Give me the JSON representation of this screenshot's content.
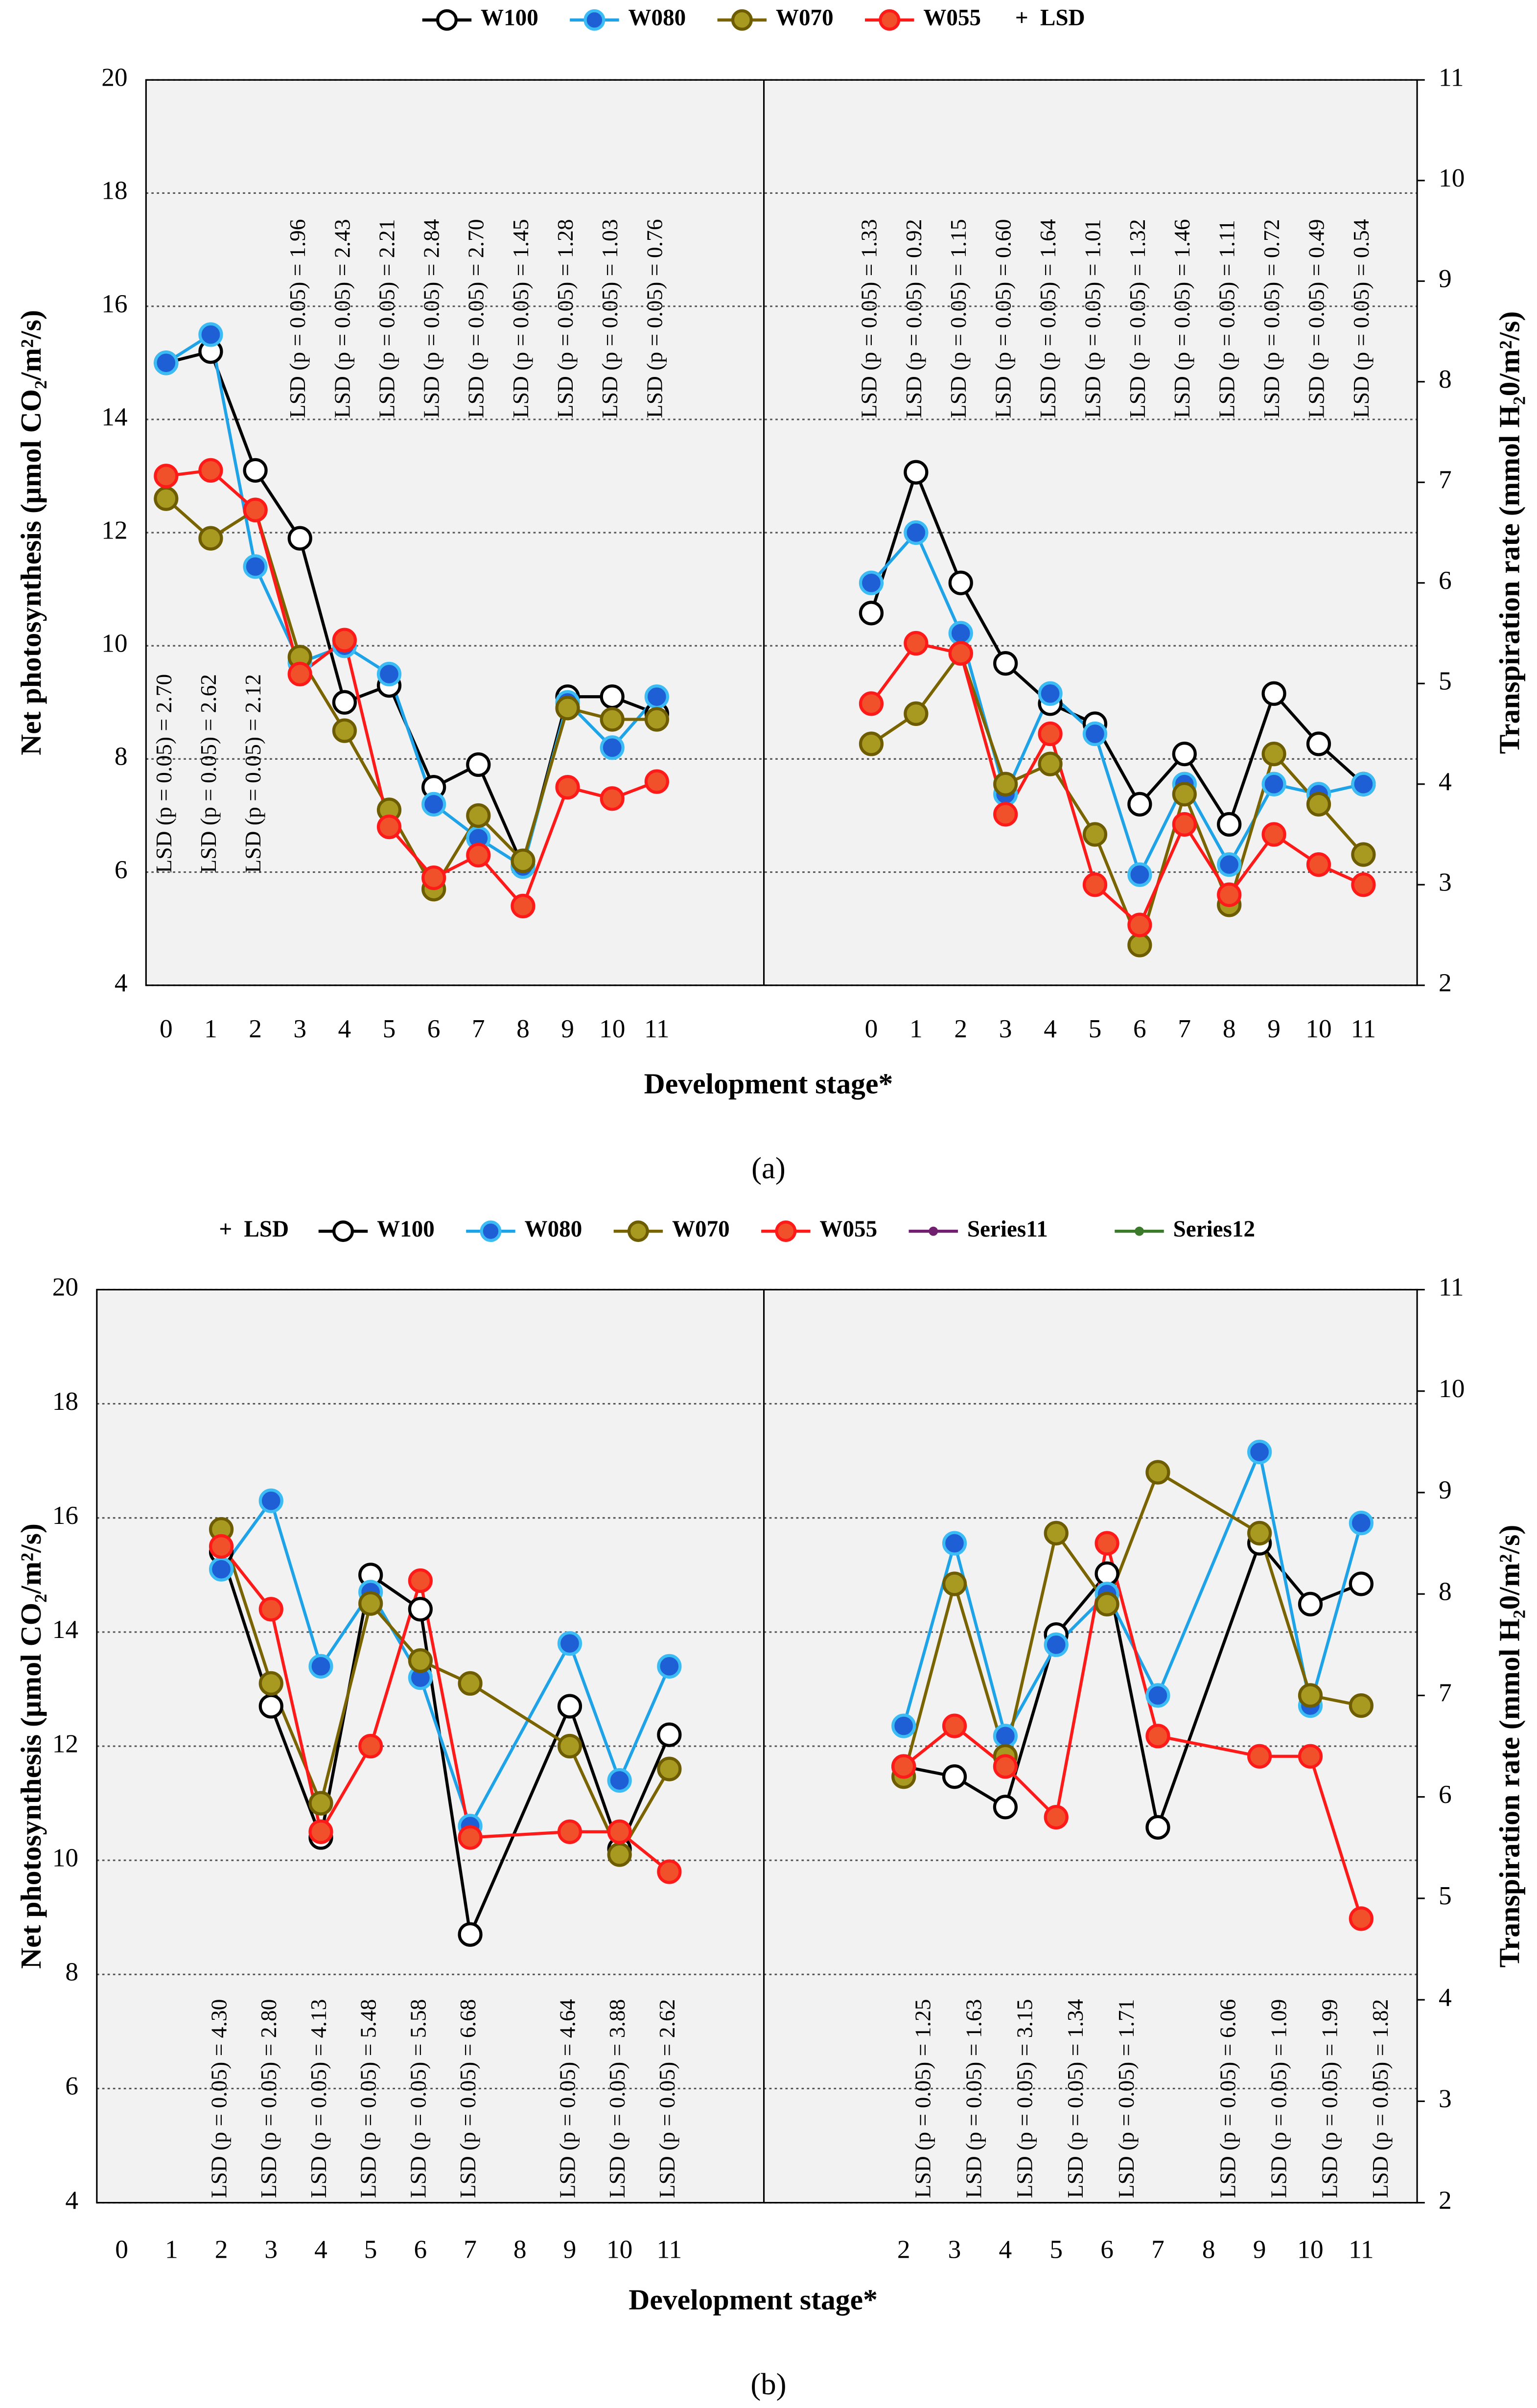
{
  "chart_data": [
    {
      "type": "line",
      "label": "(a)",
      "xlabel": "Development stage*",
      "ylabel": "Net photosynthesis (μmol CO₂/m²/s)",
      "y2label": "Transpiration rate (mmol H₂0/m²/s)",
      "ylim": [
        4,
        20
      ],
      "yticks": [
        4,
        6,
        8,
        10,
        12,
        14,
        16,
        18,
        20
      ],
      "y2lim": [
        2,
        11
      ],
      "y2ticks": [
        2,
        3,
        4,
        5,
        6,
        7,
        8,
        9,
        10,
        11
      ],
      "xlim": [
        -0.45,
        13.4
      ],
      "xticks": [
        0,
        1,
        2,
        3,
        4,
        5,
        6,
        7,
        8,
        9,
        10,
        11
      ],
      "x": [
        0,
        1,
        2,
        3,
        4,
        5,
        6,
        7,
        8,
        9,
        10,
        11
      ],
      "x2lim": [
        -2.4,
        12.2
      ],
      "x2ticks": [
        0,
        1,
        2,
        3,
        4,
        5,
        6,
        7,
        8,
        9,
        10,
        11
      ],
      "x2": [
        0,
        1,
        2,
        3,
        4,
        5,
        6,
        7,
        8,
        9,
        10,
        11
      ],
      "grid": true,
      "series": [
        {
          "name": "W100",
          "color": "#000000",
          "marker_fill": "#ffffff",
          "marker_edge": "#000000",
          "values": [
            15.0,
            15.2,
            13.1,
            11.9,
            9.0,
            9.3,
            7.5,
            7.9,
            6.1,
            9.1,
            9.1,
            8.8
          ],
          "y2_values": [
            5.7,
            7.1,
            6.0,
            5.2,
            4.8,
            4.6,
            3.8,
            4.3,
            3.6,
            4.9,
            4.4,
            4.0
          ]
        },
        {
          "name": "W080",
          "color": "#1fa3e8",
          "marker_fill": "#1e5fd6",
          "marker_edge": "#3cbcf5",
          "values": [
            15.0,
            15.5,
            11.4,
            9.7,
            10.0,
            9.5,
            7.2,
            6.6,
            6.1,
            9.0,
            8.2,
            9.1
          ],
          "y2_values": [
            6.0,
            6.5,
            5.5,
            3.9,
            4.9,
            4.5,
            3.1,
            4.0,
            3.2,
            4.0,
            3.9,
            4.0
          ]
        },
        {
          "name": "W070",
          "color": "#7a6400",
          "marker_fill": "#a89a20",
          "marker_edge": "#6e5c00",
          "values": [
            12.6,
            11.9,
            12.4,
            9.8,
            8.5,
            7.1,
            5.7,
            7.0,
            6.2,
            8.9,
            8.7,
            8.7
          ],
          "y2_values": [
            4.4,
            4.7,
            5.3,
            4.0,
            4.2,
            3.5,
            2.4,
            3.9,
            2.8,
            4.3,
            3.8,
            3.3
          ]
        },
        {
          "name": "W055",
          "color": "#ff1a1a",
          "marker_fill": "#f0502a",
          "marker_edge": "#ff1a1a",
          "values": [
            13.0,
            13.1,
            12.4,
            9.5,
            10.1,
            6.8,
            5.9,
            6.3,
            5.4,
            7.5,
            7.3,
            7.6
          ],
          "y2_values": [
            4.8,
            5.4,
            5.3,
            3.7,
            4.5,
            3.0,
            2.6,
            3.6,
            2.9,
            3.5,
            3.2,
            3.0
          ]
        }
      ],
      "legend_extra": [
        {
          "name": "LSD",
          "symbol": "+",
          "color": "#000000",
          "position": "last"
        }
      ],
      "annotations": [
        {
          "axis": "y",
          "x": 0,
          "text": "LSD (p = 0.05) = 2.70"
        },
        {
          "axis": "y",
          "x": 1,
          "text": "LSD (p = 0.05) = 2.62"
        },
        {
          "axis": "y",
          "x": 2,
          "text": "LSD (p = 0.05) = 2.12"
        },
        {
          "axis": "y",
          "x": 3,
          "text": "LSD (p = 0.05) = 1.96"
        },
        {
          "axis": "y",
          "x": 4,
          "text": "LSD (p = 0.05) = 2.43"
        },
        {
          "axis": "y",
          "x": 5,
          "text": "LSD (p = 0.05) = 2.21"
        },
        {
          "axis": "y",
          "x": 6,
          "text": "LSD (p = 0.05) = 2.84"
        },
        {
          "axis": "y",
          "x": 7,
          "text": "LSD (p = 0.05) = 2.70"
        },
        {
          "axis": "y",
          "x": 8,
          "text": "LSD (p = 0.05) = 1.45"
        },
        {
          "axis": "y",
          "x": 9,
          "text": "LSD (p = 0.05) = 1.28"
        },
        {
          "axis": "y",
          "x": 10,
          "text": "LSD (p = 0.05) = 1.03"
        },
        {
          "axis": "y",
          "x": 11,
          "text": "LSD (p = 0.05) = 0.76"
        },
        {
          "axis": "y2",
          "x": 0,
          "text": "LSD (p = 0.05) = 1.33"
        },
        {
          "axis": "y2",
          "x": 1,
          "text": "LSD (p = 0.05) = 0.92"
        },
        {
          "axis": "y2",
          "x": 2,
          "text": "LSD (p = 0.05) = 1.15"
        },
        {
          "axis": "y2",
          "x": 3,
          "text": "LSD (p = 0.05) = 0.60"
        },
        {
          "axis": "y2",
          "x": 4,
          "text": "LSD (p = 0.05) = 1.64"
        },
        {
          "axis": "y2",
          "x": 5,
          "text": "LSD (p = 0.05) = 1.01"
        },
        {
          "axis": "y2",
          "x": 6,
          "text": "LSD (p = 0.05) = 1.32"
        },
        {
          "axis": "y2",
          "x": 7,
          "text": "LSD (p = 0.05) = 1.46"
        },
        {
          "axis": "y2",
          "x": 8,
          "text": "LSD (p = 0.05) = 1.11"
        },
        {
          "axis": "y2",
          "x": 9,
          "text": "LSD (p = 0.05) = 0.72"
        },
        {
          "axis": "y2",
          "x": 10,
          "text": "LSD (p = 0.05) = 0.49"
        },
        {
          "axis": "y2",
          "x": 11,
          "text": "LSD (p = 0.05) = 0.54"
        }
      ]
    },
    {
      "type": "line",
      "label": "(b)",
      "xlabel": "Development stage*",
      "ylabel": "Net photosynthesis (μmol CO₂/m²/s)",
      "y2label": "Transpiration rate (mmol H₂0/m²/s)",
      "ylim": [
        4,
        20
      ],
      "yticks": [
        4,
        6,
        8,
        10,
        12,
        14,
        16,
        18,
        20
      ],
      "y2lim": [
        2,
        11
      ],
      "y2ticks": [
        2,
        3,
        4,
        5,
        6,
        7,
        8,
        9,
        10,
        11
      ],
      "xlim": [
        -0.5,
        12.9
      ],
      "xticks": [
        0,
        1,
        2,
        3,
        4,
        5,
        6,
        7,
        8,
        9,
        10,
        11
      ],
      "x": [
        2,
        3,
        4,
        5,
        6,
        7,
        9,
        10,
        11
      ],
      "x2lim": [
        -0.75,
        12.1
      ],
      "x2ticks": [
        2,
        3,
        4,
        5,
        6,
        7,
        8,
        9,
        10,
        11
      ],
      "x2": [
        2,
        3,
        4,
        5,
        6,
        7,
        9,
        10,
        11
      ],
      "grid": true,
      "series": [
        {
          "name": "W100",
          "color": "#000000",
          "marker_fill": "#ffffff",
          "marker_edge": "#000000",
          "values": [
            15.4,
            12.7,
            10.4,
            15.0,
            14.4,
            8.7,
            12.7,
            10.2,
            12.2
          ],
          "y2_values": [
            6.3,
            6.2,
            5.9,
            7.6,
            8.2,
            5.7,
            8.5,
            7.9,
            8.1
          ]
        },
        {
          "name": "W080",
          "color": "#1fa3e8",
          "marker_fill": "#1e5fd6",
          "marker_edge": "#3cbcf5",
          "values": [
            15.1,
            16.3,
            13.4,
            14.7,
            13.2,
            10.6,
            13.8,
            11.4,
            13.4
          ],
          "y2_values": [
            6.7,
            8.5,
            6.6,
            7.5,
            8.0,
            7.0,
            9.4,
            6.9,
            8.7
          ]
        },
        {
          "name": "W070",
          "color": "#7a6400",
          "marker_fill": "#a89a20",
          "marker_edge": "#6e5c00",
          "values": [
            15.8,
            13.1,
            11.0,
            14.5,
            13.5,
            13.1,
            12.0,
            10.1,
            11.6
          ],
          "y2_values": [
            6.2,
            8.1,
            6.4,
            8.6,
            7.9,
            9.2,
            8.6,
            7.0,
            6.9
          ]
        },
        {
          "name": "W055",
          "color": "#ff1a1a",
          "marker_fill": "#f0502a",
          "marker_edge": "#ff1a1a",
          "values": [
            15.5,
            14.4,
            10.5,
            12.0,
            14.9,
            10.4,
            10.5,
            10.5,
            9.8
          ],
          "y2_values": [
            6.3,
            6.7,
            6.3,
            5.8,
            8.5,
            6.6,
            6.4,
            6.4,
            4.8
          ]
        }
      ],
      "legend_extra": [
        {
          "name": "LSD",
          "symbol": "+",
          "color": "#000000",
          "position": "first"
        },
        {
          "name": "Series11",
          "color": "#70206e",
          "position": "last"
        },
        {
          "name": "Series12",
          "color": "#3a7a2a",
          "position": "last"
        }
      ],
      "annotations": [
        {
          "axis": "y",
          "x": 2,
          "text": "LSD (p = 0.05) = 4.30"
        },
        {
          "axis": "y",
          "x": 3,
          "text": "LSD (p = 0.05) = 2.80"
        },
        {
          "axis": "y",
          "x": 4,
          "text": "LSD (p = 0.05) = 4.13"
        },
        {
          "axis": "y",
          "x": 5,
          "text": "LSD (p = 0.05) = 5.48"
        },
        {
          "axis": "y",
          "x": 6,
          "text": "LSD (p = 0.05) = 5.58"
        },
        {
          "axis": "y",
          "x": 7,
          "text": "LSD (p = 0.05) = 6.68"
        },
        {
          "axis": "y",
          "x": 9,
          "text": "LSD (p = 0.05) = 4.64"
        },
        {
          "axis": "y",
          "x": 10,
          "text": "LSD (p = 0.05) = 3.88"
        },
        {
          "axis": "y",
          "x": 11,
          "text": "LSD (p = 0.05) = 2.62"
        },
        {
          "axis": "y2",
          "x": 2,
          "text": "LSD (p = 0.05) = 1.25"
        },
        {
          "axis": "y2",
          "x": 3,
          "text": "LSD (p = 0.05) = 1.63"
        },
        {
          "axis": "y2",
          "x": 4,
          "text": "LSD (p = 0.05) = 3.15"
        },
        {
          "axis": "y2",
          "x": 5,
          "text": "LSD (p = 0.05) = 1.34"
        },
        {
          "axis": "y2",
          "x": 6,
          "text": "LSD (p = 0.05) = 1.71"
        },
        {
          "axis": "y2",
          "x": 8,
          "text": "LSD (p = 0.05) = 6.06"
        },
        {
          "axis": "y2",
          "x": 9,
          "text": "LSD (p = 0.05) = 1.09"
        },
        {
          "axis": "y2",
          "x": 10,
          "text": "LSD (p = 0.05) = 1.99"
        },
        {
          "axis": "y2",
          "x": 11,
          "text": "LSD (p = 0.05) = 1.82"
        }
      ]
    }
  ]
}
